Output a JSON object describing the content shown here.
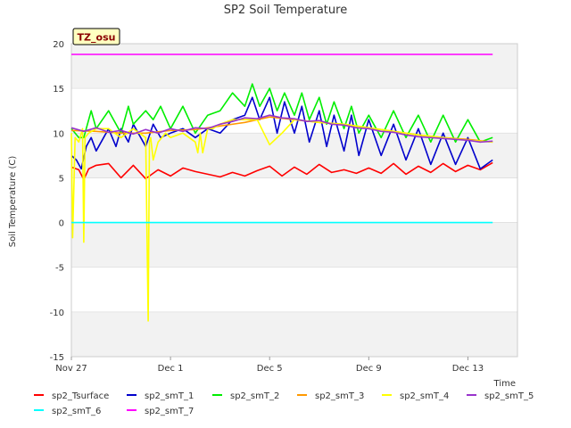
{
  "chart_data": {
    "type": "line",
    "title": "SP2 Soil Temperature",
    "xlabel": "Time",
    "ylabel": "Soil Temperature (C)",
    "badge": "TZ_osu",
    "xlim": [
      0,
      18
    ],
    "ylim": [
      -15,
      20
    ],
    "x_ticks": [
      {
        "x": 0,
        "label": "Nov 27"
      },
      {
        "x": 4,
        "label": "Dec 1"
      },
      {
        "x": 8,
        "label": "Dec 5"
      },
      {
        "x": 12,
        "label": "Dec 9"
      },
      {
        "x": 16,
        "label": "Dec 13"
      }
    ],
    "y_ticks": [
      -15,
      -10,
      -5,
      0,
      5,
      10,
      15,
      20
    ],
    "grid": "horizontal alternating bands",
    "legend_position": "bottom",
    "series": [
      {
        "name": "sp2_Tsurface",
        "color": "#ff0000",
        "x": [
          0,
          0.3,
          0.5,
          0.7,
          1,
          1.5,
          2,
          2.5,
          3,
          3.5,
          4,
          4.5,
          5,
          5.5,
          6,
          6.5,
          7,
          7.5,
          8,
          8.5,
          9,
          9.5,
          10,
          10.5,
          11,
          11.5,
          12,
          12.5,
          13,
          13.5,
          14,
          14.5,
          15,
          15.5,
          16,
          16.5,
          17
        ],
        "y": [
          6.2,
          5.9,
          4.8,
          6.0,
          6.4,
          6.6,
          5.0,
          6.4,
          4.9,
          5.9,
          5.2,
          6.1,
          5.7,
          5.4,
          5.1,
          5.6,
          5.2,
          5.8,
          6.3,
          5.2,
          6.2,
          5.4,
          6.5,
          5.6,
          5.9,
          5.5,
          6.1,
          5.5,
          6.6,
          5.4,
          6.3,
          5.6,
          6.6,
          5.7,
          6.4,
          5.9,
          6.7
        ]
      },
      {
        "name": "sp2_smT_1",
        "color": "#0000cc",
        "x": [
          0,
          0.2,
          0.4,
          0.6,
          0.8,
          1,
          1.5,
          1.8,
          2,
          2.3,
          2.5,
          3,
          3.3,
          3.6,
          4,
          4.5,
          5,
          5.5,
          6,
          6.5,
          7,
          7.3,
          7.6,
          8,
          8.3,
          8.6,
          9,
          9.3,
          9.6,
          10,
          10.3,
          10.6,
          11,
          11.3,
          11.6,
          12,
          12.5,
          13,
          13.5,
          14,
          14.5,
          15,
          15.5,
          16,
          16.5,
          17
        ],
        "y": [
          7.5,
          7.0,
          6.0,
          8.5,
          9.5,
          8.0,
          10.5,
          8.5,
          10.5,
          9.0,
          11.0,
          8.5,
          11.0,
          9.5,
          10.0,
          10.5,
          9.5,
          10.5,
          10.0,
          11.5,
          12.0,
          14.0,
          11.5,
          14.0,
          10.0,
          13.5,
          10.0,
          13.0,
          9.0,
          12.5,
          8.5,
          12.0,
          8.0,
          12.0,
          7.5,
          11.5,
          7.5,
          11.0,
          7.0,
          10.5,
          6.5,
          10.0,
          6.5,
          9.5,
          6.0,
          7.0
        ]
      },
      {
        "name": "sp2_smT_2",
        "color": "#00ee00",
        "x": [
          0,
          0.3,
          0.5,
          0.8,
          1,
          1.5,
          2,
          2.3,
          2.5,
          3,
          3.3,
          3.6,
          4,
          4.5,
          5,
          5.5,
          6,
          6.5,
          7,
          7.3,
          7.6,
          8,
          8.3,
          8.6,
          9,
          9.3,
          9.6,
          10,
          10.3,
          10.6,
          11,
          11.3,
          11.6,
          12,
          12.5,
          13,
          13.5,
          14,
          14.5,
          15,
          15.5,
          16,
          16.5,
          17
        ],
        "y": [
          10.5,
          9.5,
          9.5,
          12.5,
          10.5,
          12.5,
          10.0,
          13.0,
          11.0,
          12.5,
          11.5,
          13.0,
          10.5,
          13.0,
          10.0,
          12.0,
          12.5,
          14.5,
          13.0,
          15.5,
          13.0,
          15.0,
          12.5,
          14.5,
          12.0,
          14.5,
          11.5,
          14.0,
          11.0,
          13.5,
          10.5,
          13.0,
          10.0,
          12.0,
          9.5,
          12.5,
          9.5,
          12.0,
          9.0,
          12.0,
          9.0,
          11.5,
          9.0,
          9.5
        ]
      },
      {
        "name": "sp2_smT_3",
        "color": "#ff9900",
        "x": [
          0,
          1,
          2,
          3,
          4,
          5,
          6,
          7,
          8,
          9,
          10,
          11,
          12,
          13,
          14,
          15,
          16,
          17
        ],
        "y": [
          10.3,
          10.2,
          10.0,
          10.0,
          10.3,
          10.4,
          10.8,
          11.2,
          11.8,
          11.5,
          11.2,
          11.0,
          10.6,
          10.2,
          9.8,
          9.5,
          9.3,
          9.0
        ]
      },
      {
        "name": "sp2_smT_4",
        "color": "#ffff00",
        "x": [
          0,
          0.05,
          0.15,
          0.3,
          0.45,
          0.5,
          0.55,
          0.7,
          1,
          1.5,
          2,
          2.5,
          3,
          3.1,
          3.15,
          3.2,
          3.3,
          3.5,
          3.8,
          4,
          4.5,
          5,
          5.1,
          5.2,
          5.3,
          5.5,
          5.7,
          6,
          6.5,
          7,
          7.5,
          8,
          8.5,
          9,
          10,
          11,
          12,
          13,
          14,
          15,
          16,
          17
        ],
        "y": [
          10.0,
          -1.7,
          9.5,
          9.0,
          10.5,
          -2.2,
          9.5,
          10.0,
          10.5,
          10.5,
          9.5,
          10.5,
          9.5,
          -11.0,
          9.0,
          9.5,
          7.0,
          9.0,
          10.0,
          9.5,
          10.0,
          9.0,
          7.8,
          10.0,
          7.8,
          10.5,
          10.5,
          11.0,
          11.5,
          11.5,
          11.5,
          8.7,
          10.0,
          11.5,
          11.2,
          11.0,
          10.6,
          10.2,
          9.8,
          9.5,
          9.2,
          9.0
        ]
      },
      {
        "name": "sp2_smT_5",
        "color": "#9933cc",
        "x": [
          0,
          0.5,
          1,
          1.5,
          2,
          2.5,
          3,
          3.5,
          4,
          4.5,
          5,
          5.5,
          6,
          6.5,
          7,
          7.5,
          8,
          8.5,
          9,
          9.5,
          10,
          10.5,
          11,
          11.5,
          12,
          12.5,
          13,
          13.5,
          14,
          14.5,
          15,
          15.5,
          16,
          16.5,
          17
        ],
        "y": [
          10.6,
          10.2,
          10.6,
          10.1,
          10.3,
          9.9,
          10.4,
          10.0,
          10.5,
          10.2,
          10.6,
          10.5,
          11.0,
          11.3,
          11.7,
          11.6,
          12.0,
          11.7,
          11.6,
          11.3,
          11.4,
          11.0,
          10.9,
          10.6,
          10.5,
          10.2,
          10.1,
          9.8,
          9.6,
          9.5,
          9.4,
          9.3,
          9.2,
          9.0,
          9.1
        ]
      },
      {
        "name": "sp2_smT_6",
        "color": "#00ffff",
        "x": [
          0,
          17
        ],
        "y": [
          0,
          0
        ]
      },
      {
        "name": "sp2_smT_7",
        "color": "#ff00ff",
        "x": [
          0,
          17
        ],
        "y": [
          18.8,
          18.8
        ]
      }
    ]
  }
}
